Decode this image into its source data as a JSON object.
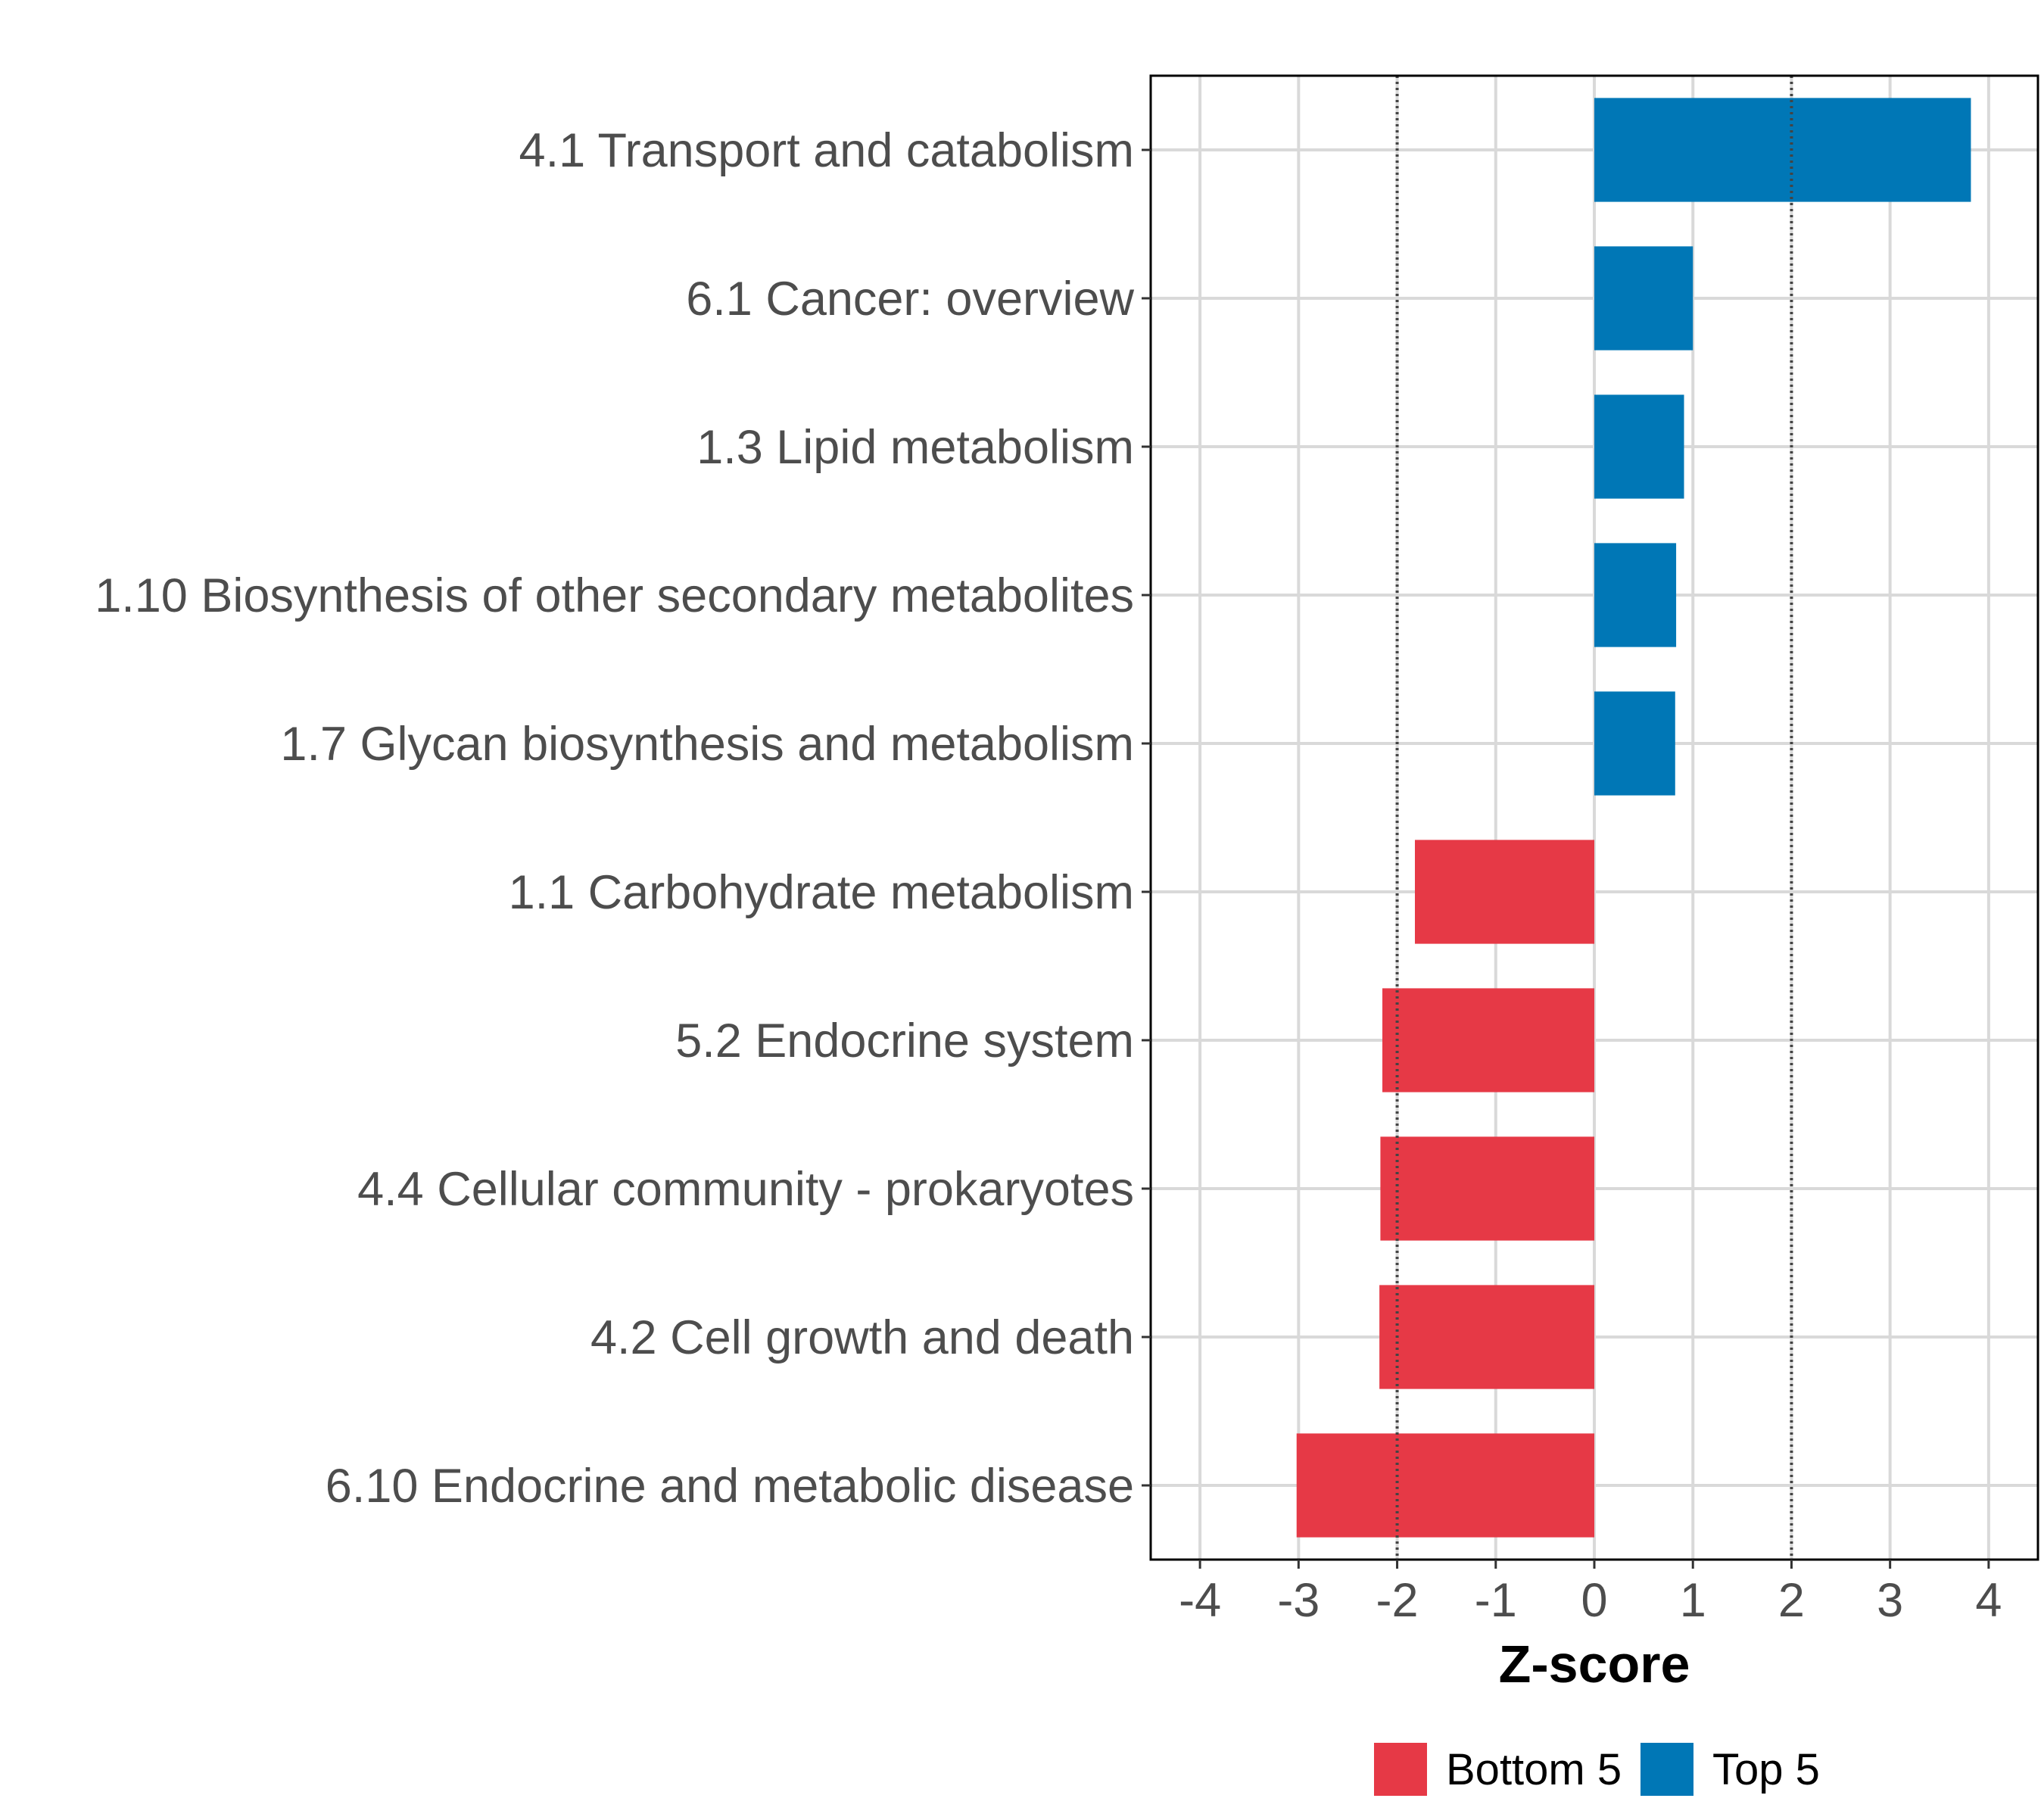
{
  "chart_data": {
    "type": "bar",
    "orientation": "horizontal",
    "xlabel": "Z-score",
    "xlim": [
      -4.5,
      4.5
    ],
    "xticks": [
      -4,
      -3,
      -2,
      -1,
      0,
      1,
      2,
      3,
      4
    ],
    "xtick_labels": [
      "-4",
      "-3",
      "-2",
      "-1",
      "0",
      "1",
      "2",
      "3",
      "4"
    ],
    "reference_lines": [
      -2,
      2
    ],
    "grid": true,
    "legend_position": "bottom",
    "categories": [
      "4.1 Transport and catabolism",
      "6.1 Cancer: overview",
      "1.3 Lipid metabolism",
      "1.10 Biosynthesis of other secondary metabolites",
      "1.7 Glycan biosynthesis and metabolism",
      "1.1 Carbohydrate metabolism",
      "5.2 Endocrine system",
      "4.4 Cellular community - prokaryotes",
      "4.2 Cell growth and death",
      "6.10 Endocrine and metabolic disease"
    ],
    "values": [
      3.82,
      1.0,
      0.91,
      0.83,
      0.82,
      -1.82,
      -2.15,
      -2.17,
      -2.18,
      -3.02
    ],
    "groups": [
      "Top 5",
      "Top 5",
      "Top 5",
      "Top 5",
      "Top 5",
      "Bottom 5",
      "Bottom 5",
      "Bottom 5",
      "Bottom 5",
      "Bottom 5"
    ],
    "legend": [
      {
        "name": "Bottom 5",
        "color": "#E63946"
      },
      {
        "name": "Top 5",
        "color": "#0077B6"
      }
    ]
  }
}
